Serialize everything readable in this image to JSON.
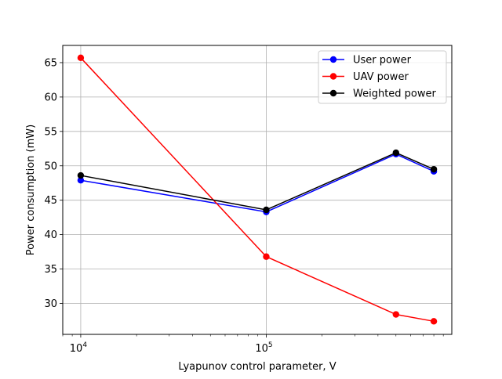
{
  "chart_data": {
    "type": "line",
    "title": "",
    "xlabel": "Lyapunov control parameter, V",
    "ylabel": "Power consumption (mW)",
    "xscale": "log",
    "xlim": [
      8000,
      1000000
    ],
    "ylim": [
      25.5,
      67.5
    ],
    "grid": true,
    "legend_position": "top-right",
    "x": [
      10000,
      100000,
      500000,
      800000
    ],
    "x_major_ticks": [
      {
        "value": 10000,
        "base": "10",
        "exp": "4"
      },
      {
        "value": 100000,
        "base": "10",
        "exp": "5"
      }
    ],
    "yticks": [
      30,
      35,
      40,
      45,
      50,
      55,
      60,
      65
    ],
    "series": [
      {
        "name": "User power",
        "color": "#0000ff",
        "marker": "circle",
        "values": [
          47.9,
          43.3,
          51.7,
          49.2
        ]
      },
      {
        "name": "UAV power",
        "color": "#ff0000",
        "marker": "circle",
        "values": [
          65.7,
          36.8,
          28.4,
          27.4
        ]
      },
      {
        "name": "Weighted power",
        "color": "#000000",
        "marker": "circle",
        "values": [
          48.6,
          43.6,
          51.9,
          49.5
        ]
      }
    ]
  }
}
